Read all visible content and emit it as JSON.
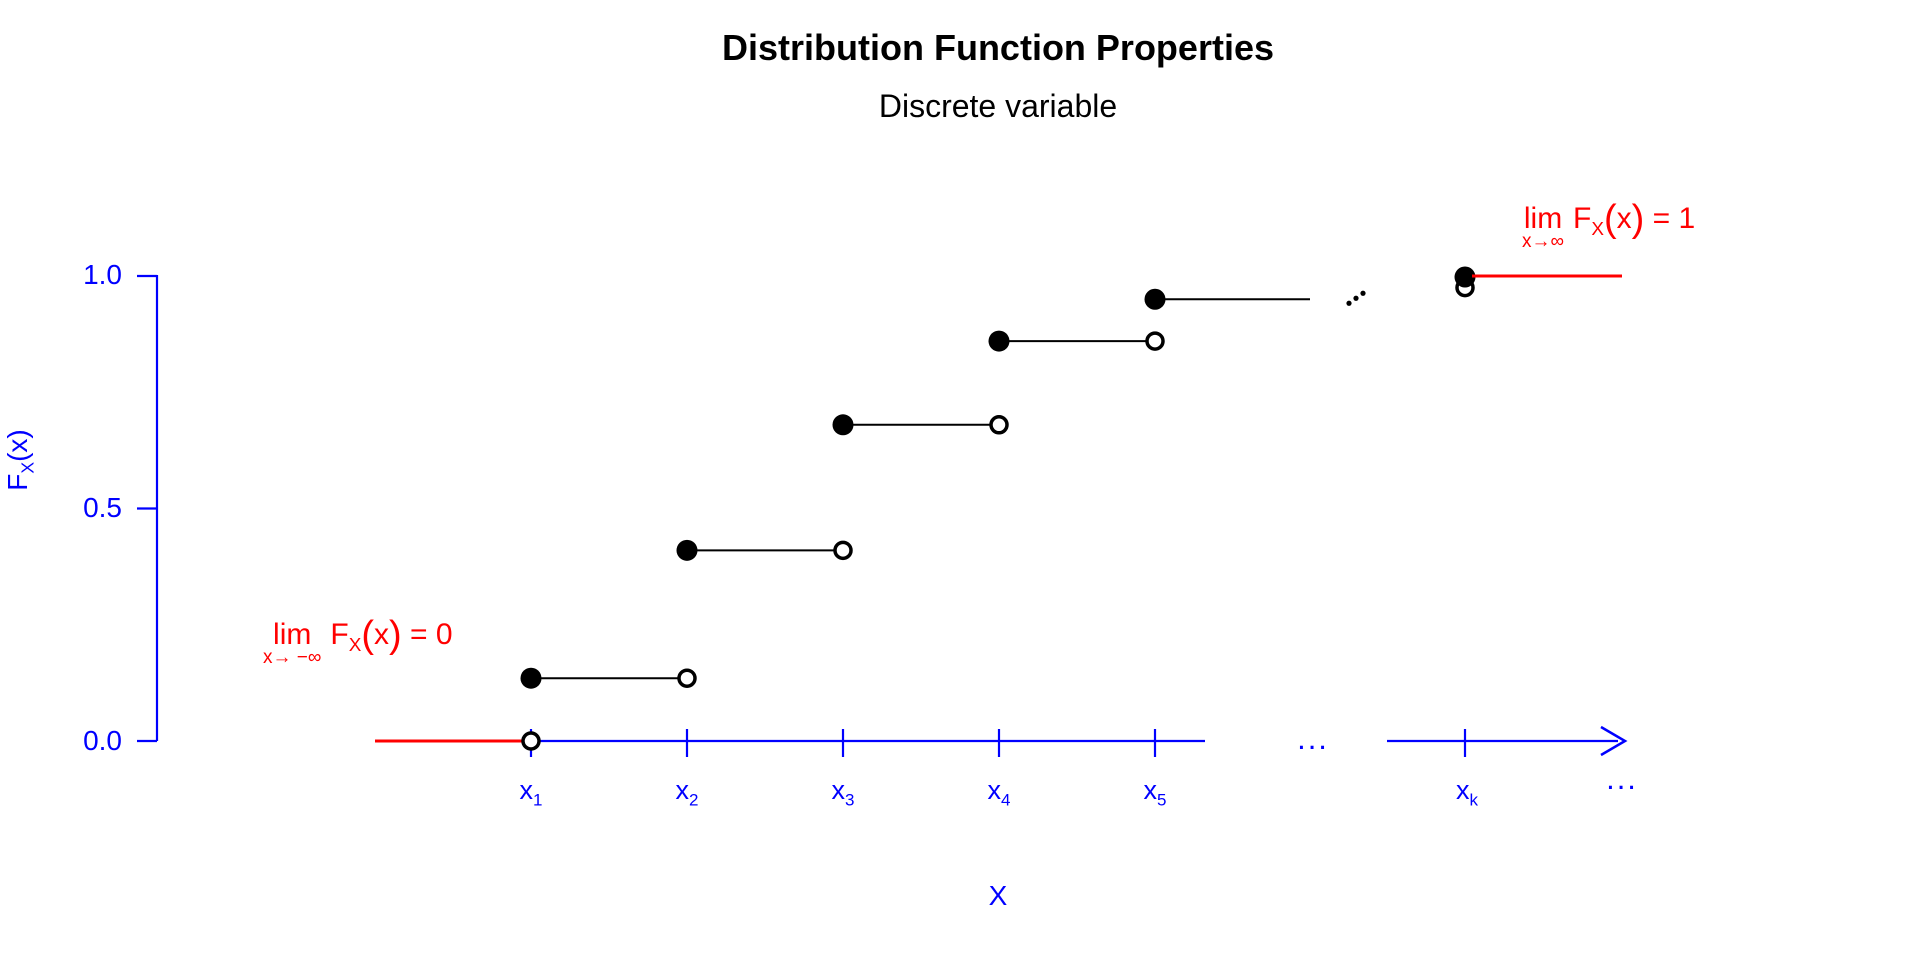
{
  "title": "Distribution Function Properties",
  "subtitle": "Discrete variable",
  "colors": {
    "axis": "#0000ff",
    "annotation": "#ff0000",
    "step": "#000000",
    "background": "#ffffff"
  },
  "y_axis": {
    "label_f": "F",
    "label_sub": "X",
    "label_rest": "(x)",
    "tick_labels": [
      "1.0",
      "0.5",
      "0.0"
    ]
  },
  "x_axis": {
    "title": "X",
    "ticks": [
      {
        "base": "x",
        "sub": "1"
      },
      {
        "base": "x",
        "sub": "2"
      },
      {
        "base": "x",
        "sub": "3"
      },
      {
        "base": "x",
        "sub": "4"
      },
      {
        "base": "x",
        "sub": "5"
      },
      {
        "base": "x",
        "sub": "k"
      }
    ],
    "gap_ellipsis": "...",
    "end_ellipsis": "..."
  },
  "annotations": {
    "left": {
      "lim": "lim",
      "sub": "x→ −∞",
      "f": "F",
      "fsub": "X",
      "paren_open": "(",
      "arg": "x",
      "paren_close": ")",
      "tail": " = 0"
    },
    "right": {
      "lim": "lim",
      "sub": "x→∞",
      "f": "F",
      "fsub": "X",
      "paren_open": "(",
      "arg": "x",
      "paren_close": ")",
      "tail": " = 1"
    }
  },
  "chart_data": {
    "type": "line",
    "style": "step-function (CDF of a discrete random variable, right-continuous steps)",
    "title": "Distribution Function Properties",
    "subtitle": "Discrete variable",
    "xlabel": "X",
    "ylabel": "F_X(x)",
    "ylim": [
      0,
      1
    ],
    "yticks": [
      0.0,
      0.5,
      1.0
    ],
    "x_categories": [
      "x1",
      "x2",
      "x3",
      "x4",
      "x5",
      "...",
      "xk",
      "..."
    ],
    "baseline_before_x1": 0,
    "steps": [
      {
        "from": "x1",
        "to": "x2",
        "F": 0.135
      },
      {
        "from": "x2",
        "to": "x3",
        "F": 0.41
      },
      {
        "from": "x3",
        "to": "x4",
        "F": 0.68
      },
      {
        "from": "x4",
        "to": "x5",
        "F": 0.86
      },
      {
        "from": "x5",
        "to": "...",
        "F": 0.95
      }
    ],
    "point_at_xk": {
      "F_left_limit": 0.975,
      "F": 1.0
    },
    "limits": {
      "x_to_neg_inf": 0,
      "x_to_pos_inf": 1
    },
    "grid": false,
    "legend": false
  }
}
